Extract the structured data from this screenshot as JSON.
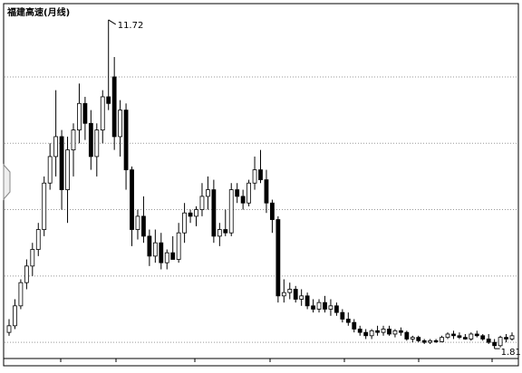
{
  "chart_data": {
    "type": "candlestick",
    "title": "福建高速(月线)",
    "open": [
      2.3,
      2.5,
      3.1,
      3.8,
      4.3,
      4.8,
      5.4,
      6.8,
      7.6,
      8.2,
      6.6,
      7.8,
      8.4,
      9.2,
      8.6,
      7.6,
      8.4,
      9.4,
      10.0,
      8.2,
      9.0,
      7.2,
      5.4,
      5.8,
      5.2,
      4.6,
      5.0,
      4.4,
      4.7,
      4.5,
      5.3,
      5.9,
      5.8,
      6.0,
      6.4,
      6.6,
      5.2,
      5.4,
      5.3,
      6.6,
      6.4,
      6.2,
      6.8,
      7.2,
      6.9,
      6.2,
      5.7,
      3.4,
      3.5,
      3.6,
      3.3,
      3.4,
      3.1,
      3.0,
      3.2,
      3.0,
      3.1,
      2.9,
      2.7,
      2.6,
      2.4,
      2.3,
      2.2,
      2.35,
      2.3,
      2.4,
      2.25,
      2.35,
      2.3,
      2.1,
      2.15,
      2.05,
      2.0,
      2.05,
      2.02,
      2.15,
      2.25,
      2.2,
      2.15,
      2.1,
      2.25,
      2.2,
      2.1,
      2.0,
      1.9,
      2.15,
      2.1
    ],
    "high": [
      2.7,
      3.3,
      3.9,
      4.5,
      5.0,
      5.6,
      7.0,
      8.0,
      9.6,
      8.4,
      8.2,
      8.6,
      9.8,
      9.4,
      9.0,
      8.6,
      9.6,
      11.72,
      10.6,
      9.3,
      9.2,
      7.3,
      6.0,
      6.4,
      5.4,
      5.4,
      5.3,
      4.8,
      5.2,
      5.6,
      6.2,
      6.0,
      6.1,
      6.8,
      7.0,
      6.9,
      5.6,
      6.0,
      6.8,
      6.8,
      6.6,
      6.9,
      7.6,
      7.8,
      7.2,
      6.3,
      5.8,
      3.9,
      3.8,
      3.7,
      3.6,
      3.5,
      3.3,
      3.3,
      3.4,
      3.3,
      3.2,
      3.0,
      2.9,
      2.7,
      2.5,
      2.4,
      2.4,
      2.5,
      2.5,
      2.5,
      2.4,
      2.45,
      2.35,
      2.2,
      2.2,
      2.1,
      2.1,
      2.1,
      2.2,
      2.3,
      2.35,
      2.3,
      2.25,
      2.3,
      2.35,
      2.25,
      2.25,
      2.1,
      2.2,
      2.25,
      2.3
    ],
    "low": [
      2.2,
      2.4,
      3.0,
      3.6,
      4.0,
      4.6,
      5.2,
      6.6,
      7.0,
      6.0,
      5.6,
      7.0,
      8.0,
      8.1,
      7.2,
      7.0,
      8.0,
      9.0,
      7.8,
      7.6,
      6.6,
      4.9,
      5.1,
      5.0,
      4.3,
      4.4,
      4.2,
      4.2,
      4.5,
      4.4,
      5.0,
      5.6,
      5.5,
      5.8,
      6.0,
      5.0,
      4.9,
      5.2,
      5.2,
      6.2,
      6.0,
      6.1,
      6.6,
      6.8,
      5.9,
      5.3,
      3.2,
      3.2,
      3.3,
      3.2,
      3.1,
      3.0,
      2.9,
      2.9,
      2.9,
      2.8,
      2.8,
      2.6,
      2.5,
      2.3,
      2.2,
      2.1,
      2.1,
      2.2,
      2.2,
      2.2,
      2.15,
      2.2,
      2.05,
      2.0,
      2.0,
      1.95,
      1.95,
      1.98,
      2.0,
      2.1,
      2.1,
      2.1,
      2.08,
      2.05,
      2.15,
      2.05,
      1.95,
      1.81,
      1.85,
      2.0,
      2.05
    ],
    "close": [
      2.5,
      3.1,
      3.8,
      4.3,
      4.8,
      5.4,
      6.8,
      7.6,
      8.2,
      6.6,
      7.8,
      8.4,
      9.2,
      8.6,
      7.6,
      8.4,
      9.4,
      9.2,
      8.2,
      9.0,
      7.2,
      5.4,
      5.8,
      5.2,
      4.6,
      5.0,
      4.4,
      4.7,
      4.5,
      5.3,
      5.9,
      5.8,
      6.0,
      6.4,
      6.6,
      5.2,
      5.4,
      5.3,
      6.6,
      6.4,
      6.2,
      6.8,
      7.2,
      6.9,
      6.2,
      5.7,
      3.4,
      3.5,
      3.6,
      3.3,
      3.4,
      3.1,
      3.0,
      3.2,
      3.0,
      3.1,
      2.9,
      2.7,
      2.6,
      2.4,
      2.3,
      2.2,
      2.35,
      2.3,
      2.4,
      2.25,
      2.35,
      2.3,
      2.1,
      2.15,
      2.05,
      2.0,
      2.05,
      2.02,
      2.15,
      2.25,
      2.2,
      2.15,
      2.1,
      2.25,
      2.2,
      2.1,
      2.0,
      1.9,
      2.15,
      2.1,
      2.2
    ],
    "up_color": "#ffffff",
    "down_color": "#000000",
    "outline_color": "#000000",
    "ylim": [
      1.54,
      12.1
    ],
    "yticks": [
      2,
      4,
      6,
      8,
      10
    ],
    "grid": true,
    "high_annotation": 11.72,
    "low_annotation": 1.81
  }
}
